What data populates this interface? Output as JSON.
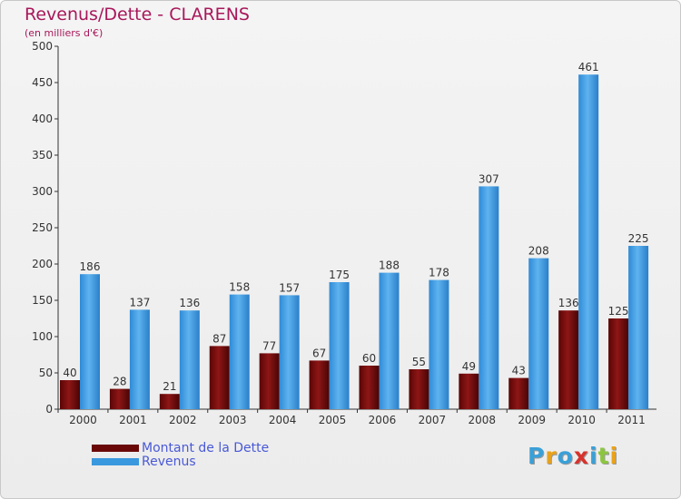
{
  "header": {
    "title": "Revenus/Dette - CLARENS",
    "subtitle": "(en milliers d'€)"
  },
  "chart_data": {
    "type": "bar",
    "categories": [
      "2000",
      "2001",
      "2002",
      "2003",
      "2004",
      "2005",
      "2006",
      "2007",
      "2008",
      "2009",
      "2010",
      "2011"
    ],
    "series": [
      {
        "name": "Montant de la Dette",
        "values": [
          40,
          28,
          21,
          87,
          77,
          67,
          60,
          55,
          49,
          43,
          136,
          125
        ],
        "color": "#7a0a0a"
      },
      {
        "name": "Revenus",
        "values": [
          186,
          137,
          136,
          158,
          157,
          175,
          188,
          178,
          307,
          208,
          461,
          225
        ],
        "color": "#4aa3e6"
      }
    ],
    "ylim": [
      0,
      500
    ],
    "yticks": [
      0,
      50,
      100,
      150,
      200,
      250,
      300,
      350,
      400,
      450,
      500
    ],
    "grid": false,
    "legend_position": "bottom-left",
    "title": "Revenus/Dette - CLARENS",
    "ylabel": "(en milliers d'€)"
  },
  "legend": {
    "items": [
      {
        "label": "Montant de la Dette",
        "color": "#7a0a0a"
      },
      {
        "label": "Revenus",
        "color": "#4aa3e6"
      }
    ]
  },
  "logo": {
    "letters": [
      "P",
      "r",
      "o",
      "x",
      "i",
      "t",
      "i"
    ],
    "colors": [
      "#3aa0d8",
      "#e8a21c",
      "#3aa0d8",
      "#d8322c",
      "#3aa0d8",
      "#8cc63f",
      "#e8a21c"
    ]
  }
}
